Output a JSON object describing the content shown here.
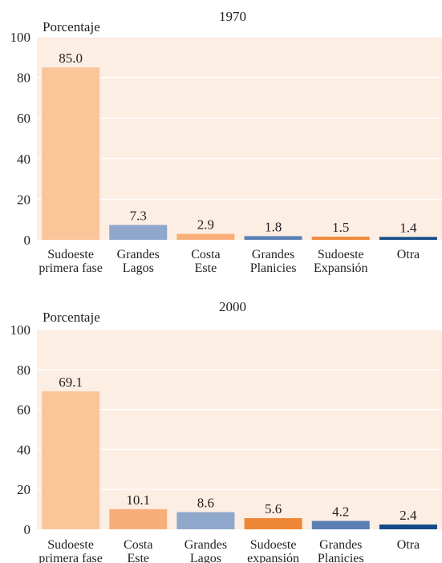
{
  "colors": {
    "plot_background": "#fdeee3",
    "gridline": "#ffffff",
    "text": "#231f20"
  },
  "chart_data": [
    {
      "type": "bar",
      "title": "1970",
      "ylabel": "Porcentaje",
      "xlabel": "",
      "ylim": [
        0,
        100
      ],
      "yticks": [
        0,
        20,
        40,
        60,
        80,
        100
      ],
      "grid": true,
      "categories": [
        [
          "Sudoeste",
          "primera fase"
        ],
        [
          "Grandes",
          "Lagos"
        ],
        [
          "Costa",
          "Este"
        ],
        [
          "Grandes",
          "Planicies"
        ],
        [
          "Sudoeste",
          "Expansión"
        ],
        [
          "Otra"
        ]
      ],
      "values": [
        85.0,
        7.3,
        2.9,
        1.8,
        1.5,
        1.4
      ],
      "value_labels": [
        "85.0",
        "7.3",
        "2.9",
        "1.8",
        "1.5",
        "1.4"
      ],
      "bar_colors": [
        "#fbc59a",
        "#8fa7cb",
        "#f8ae79",
        "#5a7fb5",
        "#ee8636",
        "#134a87"
      ]
    },
    {
      "type": "bar",
      "title": "2000",
      "ylabel": "Porcentaje",
      "xlabel": "",
      "ylim": [
        0,
        100
      ],
      "yticks": [
        0,
        20,
        40,
        60,
        80,
        100
      ],
      "grid": true,
      "categories": [
        [
          "Sudoeste",
          "primera fase"
        ],
        [
          "Costa",
          "Este"
        ],
        [
          "Grandes",
          "Lagos"
        ],
        [
          "Sudoeste",
          "expansión"
        ],
        [
          "Grandes",
          "Planicies"
        ],
        [
          "Otra"
        ]
      ],
      "values": [
        69.1,
        10.1,
        8.6,
        5.6,
        4.2,
        2.4
      ],
      "value_labels": [
        "69.1",
        "10.1",
        "8.6",
        "5.6",
        "4.2",
        "2.4"
      ],
      "bar_colors": [
        "#fbc59a",
        "#f8ae79",
        "#8fa7cb",
        "#ee8636",
        "#5a7fb5",
        "#134a87"
      ]
    }
  ]
}
